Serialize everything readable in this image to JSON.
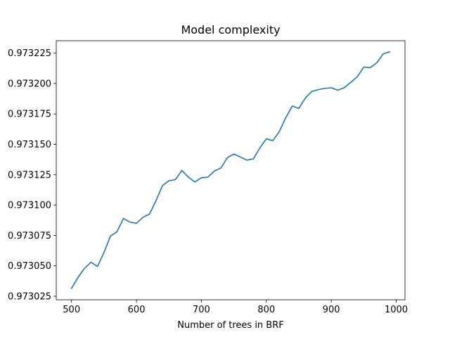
{
  "chart_data": {
    "type": "line",
    "title": "Model complexity",
    "xlabel": "Number of trees in BRF",
    "ylabel": "",
    "xlim": [
      476.5,
      1013.5
    ],
    "ylim": [
      0.9730221,
      0.9732352
    ],
    "grid": false,
    "legend": "none",
    "x_ticks": [
      500,
      600,
      700,
      800,
      900,
      1000
    ],
    "x_tick_labels": [
      "500",
      "600",
      "700",
      "800",
      "900",
      "1000"
    ],
    "y_ticks": [
      0.973025,
      0.97305,
      0.973075,
      0.9731,
      0.973125,
      0.97315,
      0.973175,
      0.9732,
      0.973225
    ],
    "y_tick_labels": [
      "0.973025",
      "0.973050",
      "0.973075",
      "0.973100",
      "0.973125",
      "0.973150",
      "0.973175",
      "0.973200",
      "0.973225"
    ],
    "series": [
      {
        "color": "#1f77b4",
        "x": [
          500,
          510,
          520,
          530,
          540,
          550,
          560,
          570,
          580,
          590,
          600,
          610,
          620,
          630,
          640,
          650,
          660,
          670,
          680,
          690,
          700,
          710,
          720,
          730,
          740,
          750,
          760,
          770,
          780,
          790,
          800,
          810,
          820,
          830,
          840,
          850,
          860,
          870,
          880,
          890,
          900,
          910,
          920,
          930,
          940,
          950,
          960,
          970,
          980,
          990
        ],
        "values": [
          0.9730315,
          0.9730405,
          0.973048,
          0.973053,
          0.9730495,
          0.973061,
          0.9730745,
          0.973078,
          0.973089,
          0.973086,
          0.973085,
          0.97309,
          0.9730925,
          0.9731035,
          0.973116,
          0.97312,
          0.973121,
          0.9731285,
          0.973123,
          0.973119,
          0.9731225,
          0.973123,
          0.973128,
          0.9731305,
          0.973139,
          0.973142,
          0.9731395,
          0.973137,
          0.973138,
          0.973147,
          0.9731545,
          0.973153,
          0.9731605,
          0.973172,
          0.9731815,
          0.9731795,
          0.973188,
          0.9731935,
          0.973195,
          0.973196,
          0.9731965,
          0.9731945,
          0.9731965,
          0.973201,
          0.9732055,
          0.9732135,
          0.973213,
          0.973217,
          0.9732245,
          0.973226
        ]
      }
    ]
  }
}
